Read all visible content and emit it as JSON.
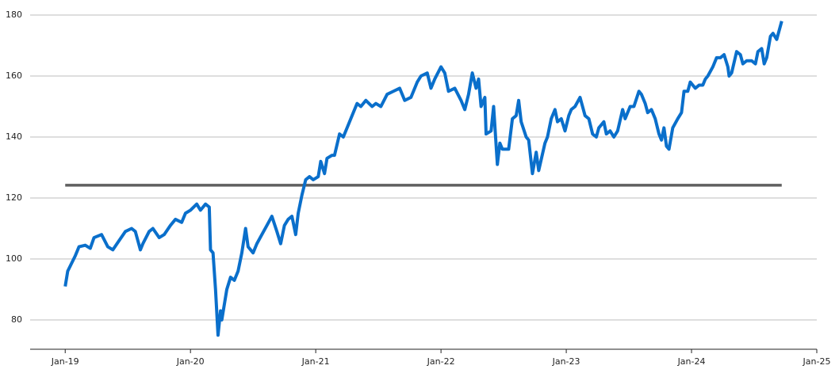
{
  "chart_data": {
    "type": "line",
    "x": [
      2019.0,
      2019.02,
      2019.08,
      2019.11,
      2019.16,
      2019.2,
      2019.23,
      2019.29,
      2019.34,
      2019.38,
      2019.43,
      2019.48,
      2019.53,
      2019.56,
      2019.6,
      2019.62,
      2019.67,
      2019.7,
      2019.75,
      2019.79,
      2019.84,
      2019.88,
      2019.93,
      2019.96,
      2020.0,
      2020.05,
      2020.08,
      2020.12,
      2020.15,
      2020.16,
      2020.18,
      2020.2,
      2020.22,
      2020.24,
      2020.25,
      2020.29,
      2020.32,
      2020.35,
      2020.38,
      2020.41,
      2020.44,
      2020.46,
      2020.5,
      2020.53,
      2020.57,
      2020.61,
      2020.65,
      2020.69,
      2020.72,
      2020.75,
      2020.78,
      2020.81,
      2020.84,
      2020.86,
      2020.89,
      2020.92,
      2020.95,
      2020.98,
      2021.02,
      2021.04,
      2021.07,
      2021.09,
      2021.13,
      2021.15,
      2021.19,
      2021.22,
      2021.25,
      2021.29,
      2021.33,
      2021.36,
      2021.4,
      2021.45,
      2021.48,
      2021.52,
      2021.57,
      2021.62,
      2021.67,
      2021.71,
      2021.76,
      2021.81,
      2021.84,
      2021.89,
      2021.92,
      2021.95,
      2022.0,
      2022.03,
      2022.06,
      2022.11,
      2022.16,
      2022.19,
      2022.22,
      2022.25,
      2022.28,
      2022.3,
      2022.32,
      2022.35,
      2022.36,
      2022.4,
      2022.42,
      2022.45,
      2022.47,
      2022.49,
      2022.54,
      2022.57,
      2022.6,
      2022.62,
      2022.64,
      2022.68,
      2022.7,
      2022.73,
      2022.76,
      2022.78,
      2022.83,
      2022.85,
      2022.88,
      2022.91,
      2022.93,
      2022.96,
      2022.99,
      2023.02,
      2023.04,
      2023.07,
      2023.11,
      2023.15,
      2023.18,
      2023.21,
      2023.24,
      2023.26,
      2023.3,
      2023.32,
      2023.35,
      2023.38,
      2023.41,
      2023.45,
      2023.47,
      2023.51,
      2023.54,
      2023.58,
      2023.6,
      2023.63,
      2023.65,
      2023.68,
      2023.71,
      2023.74,
      2023.76,
      2023.78,
      2023.8,
      2023.82,
      2023.85,
      2023.89,
      2023.92,
      2023.94,
      2023.97,
      2023.99,
      2024.03,
      2024.06,
      2024.09,
      2024.11,
      2024.13,
      2024.17,
      2024.2,
      2024.23,
      2024.26,
      2024.29,
      2024.3,
      2024.32,
      2024.36,
      2024.39,
      2024.41,
      2024.44,
      2024.48,
      2024.51,
      2024.53,
      2024.56,
      2024.58,
      2024.6,
      2024.63,
      2024.65,
      2024.68,
      2024.72
    ],
    "series": [
      {
        "color": "#0a6fcb",
        "values": [
          91,
          96,
          101,
          104,
          104.5,
          103.5,
          107,
          108,
          104,
          103,
          106,
          109,
          110,
          109,
          103,
          105,
          109,
          110,
          107,
          108,
          111,
          113,
          112,
          115,
          116,
          118,
          116,
          118,
          117,
          103,
          102,
          90,
          75,
          83,
          80,
          90,
          94,
          93,
          96,
          102,
          110,
          104,
          102,
          105,
          108,
          111,
          114,
          109,
          105,
          111,
          113,
          114,
          108,
          115,
          121,
          126,
          127,
          126,
          127,
          132,
          128,
          133,
          134,
          134,
          141,
          140,
          143,
          147,
          151,
          150,
          152,
          150,
          151,
          150,
          154,
          155,
          156,
          152,
          153,
          158,
          160,
          161,
          156,
          159,
          163,
          161,
          155,
          156,
          152,
          149,
          154,
          161,
          156,
          159,
          150,
          153,
          141,
          142,
          150,
          131,
          138,
          136,
          136,
          146,
          147,
          152,
          145,
          140,
          139,
          128,
          135,
          129,
          138,
          140,
          146,
          149,
          145,
          146,
          142,
          147,
          149,
          150,
          153,
          147,
          146,
          141,
          140,
          143,
          145,
          141,
          142,
          140,
          142,
          149,
          146,
          150,
          150,
          155,
          154,
          151,
          148,
          149,
          146,
          141,
          139,
          143,
          137,
          136,
          143,
          146,
          148,
          155,
          155,
          158,
          156,
          157,
          157,
          159,
          160,
          163,
          166,
          166,
          167,
          163,
          160,
          161,
          168,
          167,
          164,
          165,
          165,
          164,
          168,
          169,
          164,
          166,
          173,
          174,
          172,
          178
        ]
      }
    ],
    "hline": {
      "value": 124.2,
      "xlim": [
        2019,
        2024.72
      ],
      "color": "#5f5f5f"
    },
    "xlim": [
      2018.72,
      2025
    ],
    "xticks": [
      {
        "value": 2019,
        "label": "Jan-19"
      },
      {
        "value": 2020,
        "label": "Jan-20"
      },
      {
        "value": 2021,
        "label": "Jan-21"
      },
      {
        "value": 2022,
        "label": "Jan-22"
      },
      {
        "value": 2023,
        "label": "Jan-23"
      },
      {
        "value": 2024,
        "label": "Jan-24"
      },
      {
        "value": 2025,
        "label": "Jan-25"
      }
    ],
    "ylim": [
      70,
      180
    ],
    "yticks": [
      80,
      100,
      120,
      140,
      160,
      180
    ],
    "grid": true
  }
}
